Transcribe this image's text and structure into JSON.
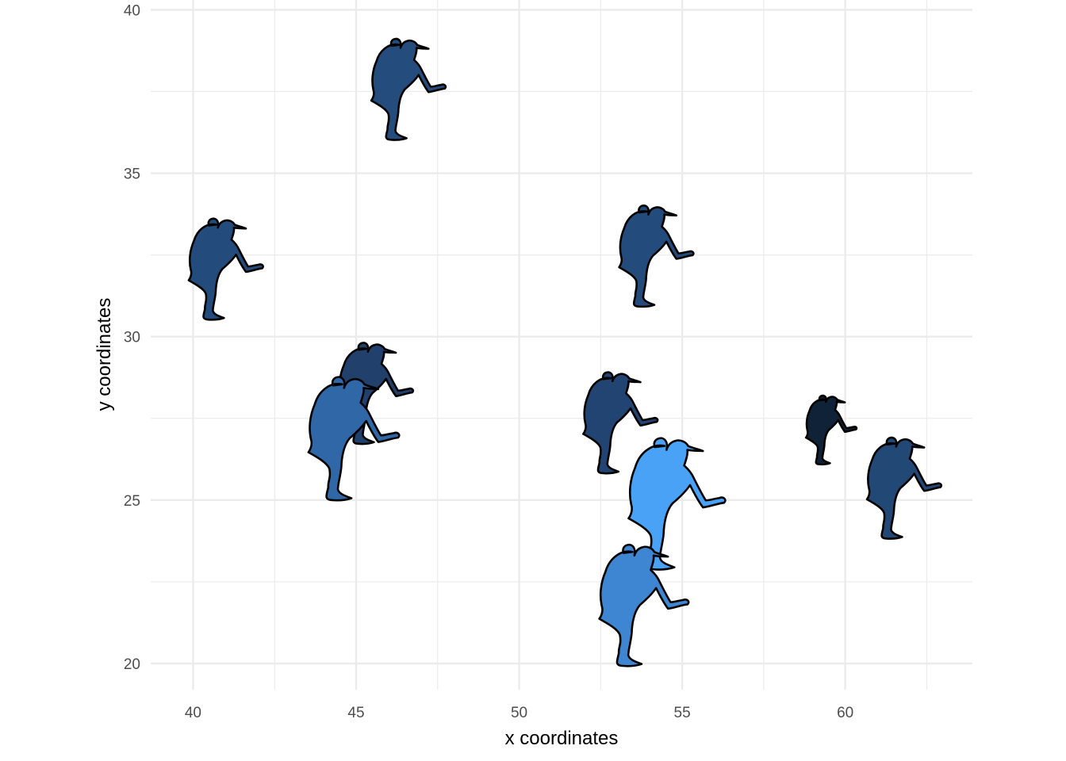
{
  "chart_data": {
    "type": "scatter",
    "marker": "baseball-pitcher-silhouette-icon",
    "title": "",
    "xlabel": "x coordinates",
    "ylabel": "y coordinates",
    "xlim": [
      38.7,
      63.9
    ],
    "ylim": [
      19.2,
      40.3
    ],
    "xticks": [
      40,
      45,
      50,
      55,
      60
    ],
    "xtick_labels": [
      "40",
      "45",
      "50",
      "55",
      "60"
    ],
    "yticks": [
      20,
      25,
      30,
      35,
      40
    ],
    "ytick_labels": [
      "20",
      "25",
      "30",
      "35",
      "40"
    ],
    "grid": true,
    "legend": "none",
    "theme": "minimal",
    "outline_color": "#000000",
    "points": [
      {
        "x": 46.5,
        "y": 37.5,
        "size": 1.0,
        "color": "#244c7c"
      },
      {
        "x": 40.9,
        "y": 32.0,
        "size": 1.0,
        "color": "#234b7b"
      },
      {
        "x": 54.1,
        "y": 32.4,
        "size": 1.0,
        "color": "#234b7b"
      },
      {
        "x": 45.5,
        "y": 28.2,
        "size": 1.0,
        "color": "#21406b"
      },
      {
        "x": 44.8,
        "y": 26.8,
        "size": 1.22,
        "color": "#2f67a7"
      },
      {
        "x": 53.0,
        "y": 27.3,
        "size": 1.0,
        "color": "#214472"
      },
      {
        "x": 54.7,
        "y": 24.8,
        "size": 1.3,
        "color": "#49a2f5"
      },
      {
        "x": 53.7,
        "y": 21.7,
        "size": 1.2,
        "color": "#3e86d1"
      },
      {
        "x": 59.5,
        "y": 27.1,
        "size": 0.68,
        "color": "#0f2238"
      },
      {
        "x": 61.7,
        "y": 25.3,
        "size": 1.0,
        "color": "#224876"
      }
    ]
  }
}
